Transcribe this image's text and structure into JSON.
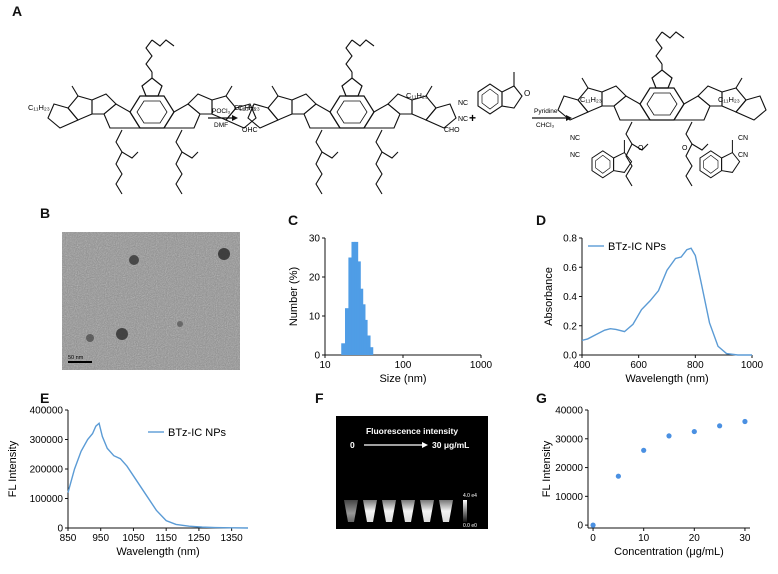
{
  "panels": {
    "A": "A",
    "B": "B",
    "C": "C",
    "D": "D",
    "E": "E",
    "F": "F",
    "G": "G"
  },
  "scheme": {
    "c11_1": "C₁₁H₂₃",
    "c11_2": "C₁₁H₂₃",
    "c11_3": "C₁₁H₂₃",
    "c11_4": "C₁₁H₂₃",
    "c11_5": "C₁₁H₂₃",
    "c11_6": "C₁₁H₂₃",
    "reagent1_top": "POCl₃",
    "reagent1_bottom": "DMF",
    "reagent2_top": "Pyridine",
    "reagent2_bottom": "CHCl₃",
    "plus": "+",
    "cho": "CHO",
    "ohc": "OHC",
    "nc": "NC",
    "cn": "CN",
    "o": "O",
    "s": "S",
    "n": "N"
  },
  "tem": {
    "scale_label": "50 nm"
  },
  "colors": {
    "curve": "#5b9bd5",
    "bar": "#4f9de6",
    "dots": "#4a90e2"
  },
  "chart_data": [
    {
      "panel": "C",
      "type": "bar",
      "title": "",
      "xlabel": "Size (nm)",
      "ylabel": "Number (%)",
      "xscale": "log",
      "xlim": [
        10,
        1000
      ],
      "ylim": [
        0,
        30
      ],
      "xticks": [
        "10",
        "100",
        "1000"
      ],
      "yticks": [
        "0",
        "10",
        "20",
        "30"
      ],
      "bins": [
        17,
        19,
        21,
        23,
        25,
        27,
        29,
        31,
        33,
        36,
        39
      ],
      "values": [
        3,
        12,
        25,
        29,
        29,
        24,
        17,
        13,
        9,
        5,
        2
      ]
    },
    {
      "panel": "D",
      "type": "line",
      "title": "",
      "xlabel": "Wavelength (nm)",
      "ylabel": "Absorbance",
      "xlim": [
        400,
        1000
      ],
      "ylim": [
        0,
        0.8
      ],
      "xticks": [
        "400",
        "600",
        "800",
        "1000"
      ],
      "yticks": [
        "0.0",
        "0.2",
        "0.4",
        "0.6",
        "0.8"
      ],
      "legend": "BTz-IC NPs",
      "legend_position": "top-left",
      "x": [
        400,
        420,
        450,
        480,
        500,
        520,
        550,
        580,
        610,
        640,
        670,
        700,
        730,
        750,
        770,
        785,
        800,
        820,
        850,
        880,
        910,
        950,
        1000
      ],
      "y": [
        0.1,
        0.11,
        0.14,
        0.17,
        0.18,
        0.175,
        0.16,
        0.21,
        0.31,
        0.37,
        0.44,
        0.58,
        0.66,
        0.67,
        0.72,
        0.73,
        0.68,
        0.5,
        0.22,
        0.06,
        0.01,
        0.0,
        0.0
      ]
    },
    {
      "panel": "E",
      "type": "line",
      "title": "",
      "xlabel": "Wavelength (nm)",
      "ylabel": "FL Intensity",
      "xlim": [
        850,
        1400
      ],
      "ylim": [
        0,
        400000
      ],
      "xticks": [
        "850",
        "950",
        "1050",
        "1150",
        "1250",
        "1350"
      ],
      "yticks": [
        "0",
        "100000",
        "200000",
        "300000",
        "400000"
      ],
      "legend": "BTz-IC NPs",
      "legend_position": "top-right",
      "x": [
        850,
        870,
        890,
        910,
        925,
        935,
        945,
        955,
        970,
        990,
        1010,
        1030,
        1060,
        1090,
        1120,
        1150,
        1180,
        1220,
        1260,
        1300,
        1350,
        1400
      ],
      "y": [
        120000,
        200000,
        260000,
        300000,
        320000,
        345000,
        355000,
        310000,
        270000,
        245000,
        235000,
        210000,
        160000,
        110000,
        60000,
        25000,
        12000,
        6000,
        3000,
        1500,
        500,
        0
      ]
    },
    {
      "panel": "G",
      "type": "scatter",
      "title": "",
      "xlabel": "Concentration (μg/mL)",
      "ylabel": "FL Intensity",
      "xlim": [
        -1,
        31
      ],
      "ylim": [
        -1000,
        40000
      ],
      "xticks": [
        "0",
        "10",
        "20",
        "30"
      ],
      "yticks": [
        "0",
        "10000",
        "20000",
        "30000",
        "40000"
      ],
      "x": [
        0,
        5,
        10,
        15,
        20,
        25,
        30
      ],
      "y": [
        0,
        17000,
        26000,
        31000,
        32500,
        34500,
        36000
      ]
    }
  ],
  "fluor": {
    "title": "Fluorescence intensity",
    "range_start": "0",
    "range_end": "30 μg/mL",
    "scale_max": "4.0 e4",
    "scale_min": "0.0 e0"
  }
}
